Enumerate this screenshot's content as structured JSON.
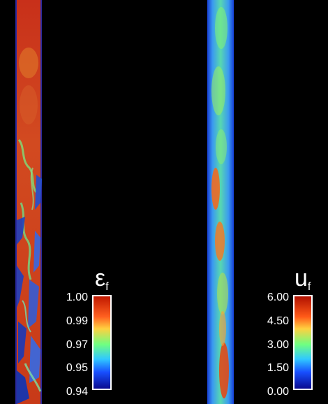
{
  "panels": [
    {
      "symbol": "ε",
      "subscript": "f",
      "ticks": [
        "1.00",
        "0.99",
        "0.97",
        "0.95",
        "0.94"
      ],
      "colors": [
        "#cc2200",
        "#ff5a1a",
        "#66ff88",
        "#1e78ff",
        "#0a0a9c"
      ]
    },
    {
      "symbol": "u",
      "subscript": "f",
      "ticks": [
        "6.00",
        "4.50",
        "3.00",
        "1.50",
        "0.00"
      ],
      "colors": [
        "#b01000",
        "#ff5a1a",
        "#66ff88",
        "#1e78ff",
        "#0a0a9c"
      ]
    }
  ]
}
